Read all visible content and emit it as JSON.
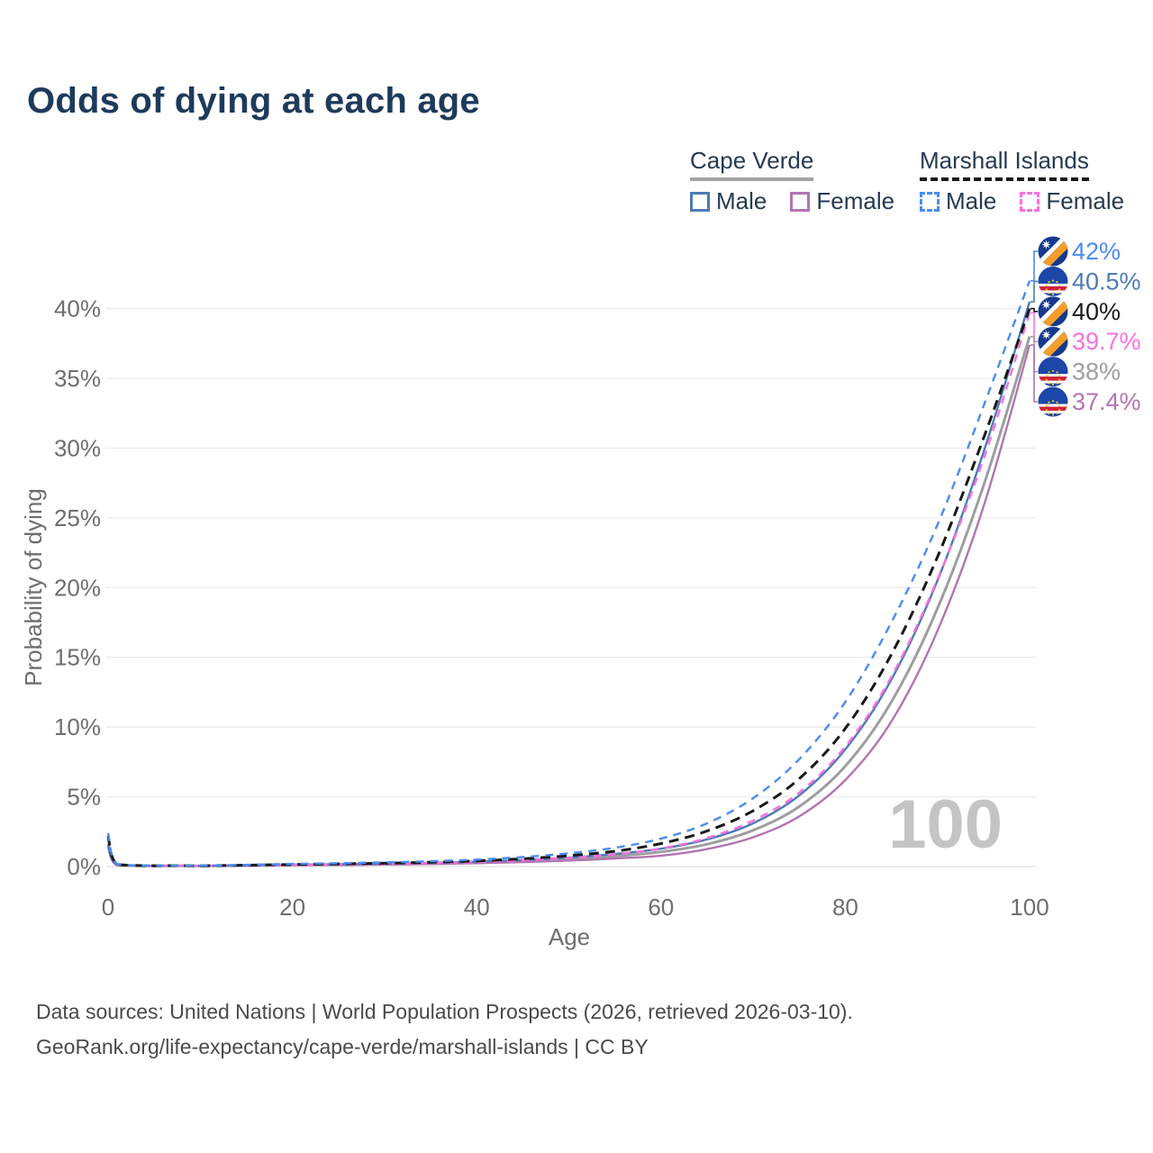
{
  "page": {
    "title": "Odds of dying at each age"
  },
  "legend": {
    "groups": [
      {
        "id": "cape-verde",
        "label": "Cape Verde",
        "underline": "solid",
        "underline_color": "#a3a3a3",
        "items": [
          {
            "id": "cape-verde-male",
            "label": "Male",
            "color": "#4e7bb4",
            "dashed": false
          },
          {
            "id": "cape-verde-female",
            "label": "Female",
            "color": "#b175b1",
            "dashed": false
          }
        ]
      },
      {
        "id": "marshall-islands",
        "label": "Marshall Islands",
        "underline": "dashed",
        "underline_color": "#191919",
        "items": [
          {
            "id": "marshall-islands-male",
            "label": "Male",
            "color": "#4b8bf1",
            "dashed": true
          },
          {
            "id": "marshall-islands-female",
            "label": "Female",
            "color": "#fb6fe0",
            "dashed": true
          }
        ]
      }
    ]
  },
  "chart_data": {
    "type": "line",
    "title": "Odds of dying at each age",
    "xlabel": "Age",
    "ylabel": "Probability of dying",
    "unit": "percent",
    "xlim": [
      0,
      100
    ],
    "ylim": [
      0,
      43.5
    ],
    "xticks": [
      0,
      20,
      40,
      60,
      80,
      100
    ],
    "yticks": [
      0,
      5,
      10,
      15,
      20,
      25,
      30,
      35,
      40
    ],
    "grid": "horizontal",
    "legend_position": "top-right",
    "watermark": "100",
    "x": [
      0,
      1,
      5,
      10,
      15,
      20,
      25,
      30,
      35,
      40,
      45,
      50,
      55,
      60,
      65,
      70,
      75,
      80,
      85,
      90,
      95,
      100
    ],
    "series": [
      {
        "name": "Cape Verde both sexes",
        "country": "Cape Verde",
        "flag": "cv",
        "color": "#9e9e9e",
        "dashed": false,
        "width": 3,
        "end_label": "38%",
        "values": [
          1.5,
          0.11,
          0.04,
          0.04,
          0.07,
          0.11,
          0.14,
          0.17,
          0.22,
          0.29,
          0.39,
          0.53,
          0.74,
          1.05,
          1.6,
          2.6,
          4.3,
          7.2,
          11.8,
          18.5,
          27.3,
          38
        ]
      },
      {
        "name": "Cape Verde Female",
        "country": "Cape Verde",
        "flag": "cv",
        "color": "#b175b1",
        "dashed": false,
        "width": 2.4,
        "end_label": "37.4%",
        "values": [
          1.4,
          0.1,
          0.04,
          0.04,
          0.06,
          0.09,
          0.11,
          0.14,
          0.18,
          0.24,
          0.32,
          0.43,
          0.58,
          0.78,
          1.25,
          2.1,
          3.6,
          6.2,
          10.4,
          16.9,
          25.8,
          37.4
        ]
      },
      {
        "name": "Cape Verde Male",
        "country": "Cape Verde",
        "flag": "cv",
        "color": "#4e7bb4",
        "dashed": false,
        "width": 2.4,
        "end_label": "40.5%",
        "values": [
          1.6,
          0.12,
          0.05,
          0.05,
          0.08,
          0.13,
          0.17,
          0.21,
          0.27,
          0.35,
          0.47,
          0.64,
          0.9,
          1.28,
          1.95,
          3.1,
          5.1,
          8.4,
          13.4,
          20.5,
          29.7,
          40.5
        ]
      },
      {
        "name": "Marshall Islands Female",
        "country": "Marshall Islands",
        "flag": "mh",
        "color": "#fb6fe0",
        "dashed": true,
        "width": 2.4,
        "end_label": "39.7%",
        "values": [
          2.0,
          0.14,
          0.05,
          0.05,
          0.08,
          0.12,
          0.15,
          0.19,
          0.25,
          0.33,
          0.45,
          0.62,
          0.88,
          1.3,
          2.05,
          3.3,
          5.3,
          8.6,
          13.6,
          20.6,
          29.2,
          39.7
        ]
      },
      {
        "name": "Marshall Islands both sexes",
        "country": "Marshall Islands",
        "flag": "mh",
        "color": "#191919",
        "dashed": true,
        "width": 3,
        "end_label": "40%",
        "values": [
          2.2,
          0.16,
          0.06,
          0.06,
          0.1,
          0.15,
          0.19,
          0.24,
          0.31,
          0.41,
          0.56,
          0.78,
          1.1,
          1.65,
          2.55,
          4.0,
          6.3,
          9.9,
          15.2,
          22.2,
          30.7,
          40
        ]
      },
      {
        "name": "Marshall Islands Male",
        "country": "Marshall Islands",
        "flag": "mh",
        "color": "#4b8bf1",
        "dashed": true,
        "width": 2.4,
        "end_label": "42%",
        "values": [
          2.4,
          0.18,
          0.07,
          0.07,
          0.12,
          0.19,
          0.24,
          0.3,
          0.38,
          0.5,
          0.68,
          0.95,
          1.35,
          2.0,
          3.1,
          4.9,
          7.7,
          11.8,
          17.5,
          24.5,
          33,
          42
        ]
      }
    ]
  },
  "footer": {
    "line1": "Data sources: United Nations | World Population Prospects (2026, retrieved 2026-03-10).",
    "line2": "GeoRank.org/life-expectancy/cape-verde/marshall-islands | CC BY"
  }
}
